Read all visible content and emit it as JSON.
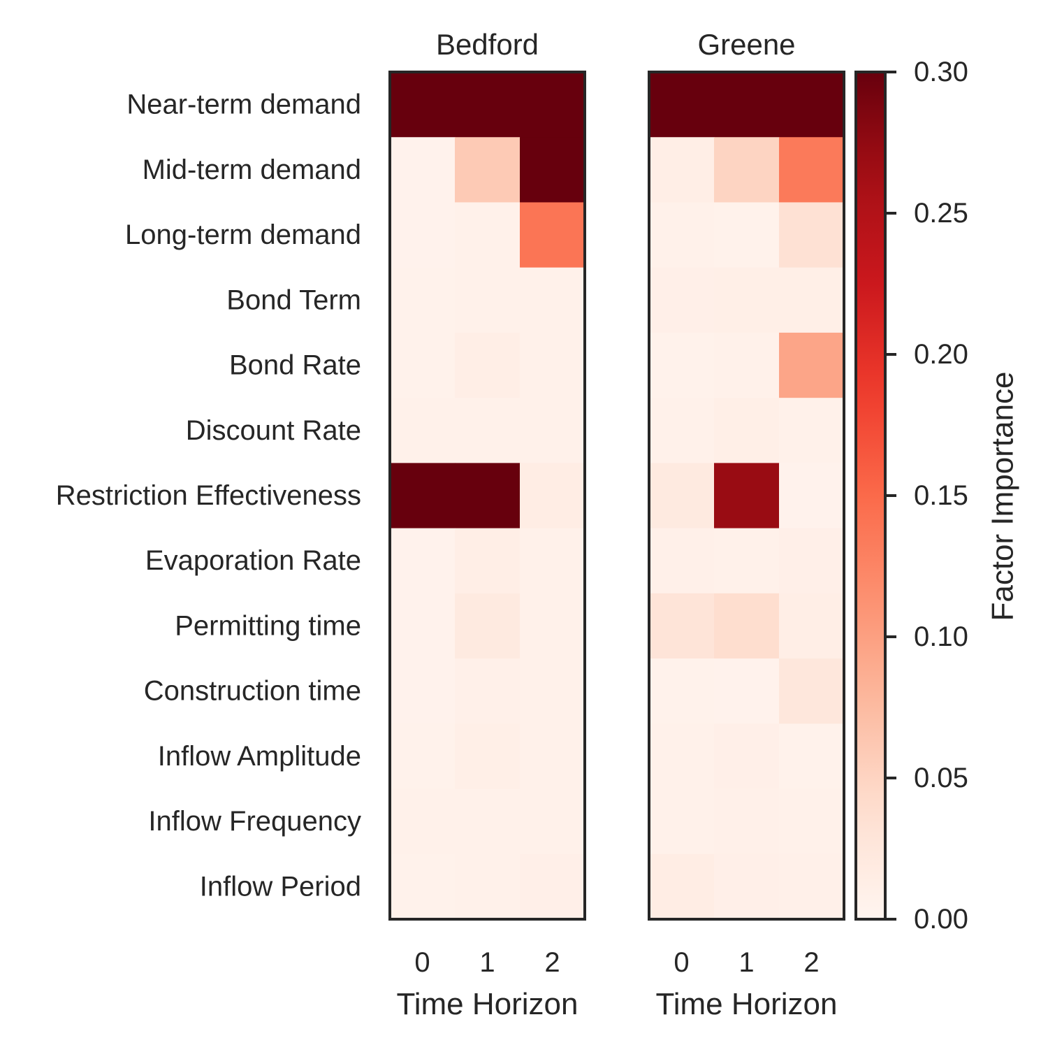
{
  "chart_data": {
    "type": "heatmap",
    "rows": [
      "Near-term demand",
      "Mid-term demand",
      "Long-term demand",
      "Bond Term",
      "Bond Rate",
      "Discount Rate",
      "Restriction Effectiveness",
      "Evaporation Rate",
      "Permitting time",
      "Construction time",
      "Inflow Amplitude",
      "Inflow Frequency",
      "Inflow Period"
    ],
    "columns": [
      "0",
      "1",
      "2"
    ],
    "xlabel": "Time Horizon",
    "panels": [
      {
        "title": "Bedford",
        "values": [
          [
            0.3,
            0.3,
            0.3
          ],
          [
            0.005,
            0.06,
            0.3
          ],
          [
            0.005,
            0.007,
            0.14
          ],
          [
            0.006,
            0.007,
            0.007
          ],
          [
            0.006,
            0.012,
            0.008
          ],
          [
            0.007,
            0.007,
            0.008
          ],
          [
            0.3,
            0.3,
            0.015
          ],
          [
            0.005,
            0.012,
            0.008
          ],
          [
            0.005,
            0.02,
            0.008
          ],
          [
            0.005,
            0.009,
            0.008
          ],
          [
            0.006,
            0.011,
            0.008
          ],
          [
            0.007,
            0.008,
            0.008
          ],
          [
            0.006,
            0.008,
            0.01
          ]
        ]
      },
      {
        "title": "Greene",
        "values": [
          [
            0.3,
            0.3,
            0.3
          ],
          [
            0.012,
            0.05,
            0.135
          ],
          [
            0.008,
            0.006,
            0.035
          ],
          [
            0.01,
            0.011,
            0.011
          ],
          [
            0.006,
            0.008,
            0.095
          ],
          [
            0.008,
            0.011,
            0.007
          ],
          [
            0.02,
            0.27,
            0.005
          ],
          [
            0.009,
            0.007,
            0.01
          ],
          [
            0.03,
            0.04,
            0.012
          ],
          [
            0.006,
            0.005,
            0.025
          ],
          [
            0.007,
            0.01,
            0.006
          ],
          [
            0.008,
            0.009,
            0.008
          ],
          [
            0.015,
            0.01,
            0.009
          ]
        ]
      }
    ],
    "colorbar": {
      "label": "Factor Importance",
      "min": 0.0,
      "max": 0.3,
      "ticks": [
        "0.00",
        "0.05",
        "0.10",
        "0.15",
        "0.20",
        "0.25",
        "0.30"
      ],
      "colormap": "Reds"
    },
    "colors": {
      "low": "#fff5f0",
      "high": "#67000d",
      "frame": "#262626"
    }
  }
}
